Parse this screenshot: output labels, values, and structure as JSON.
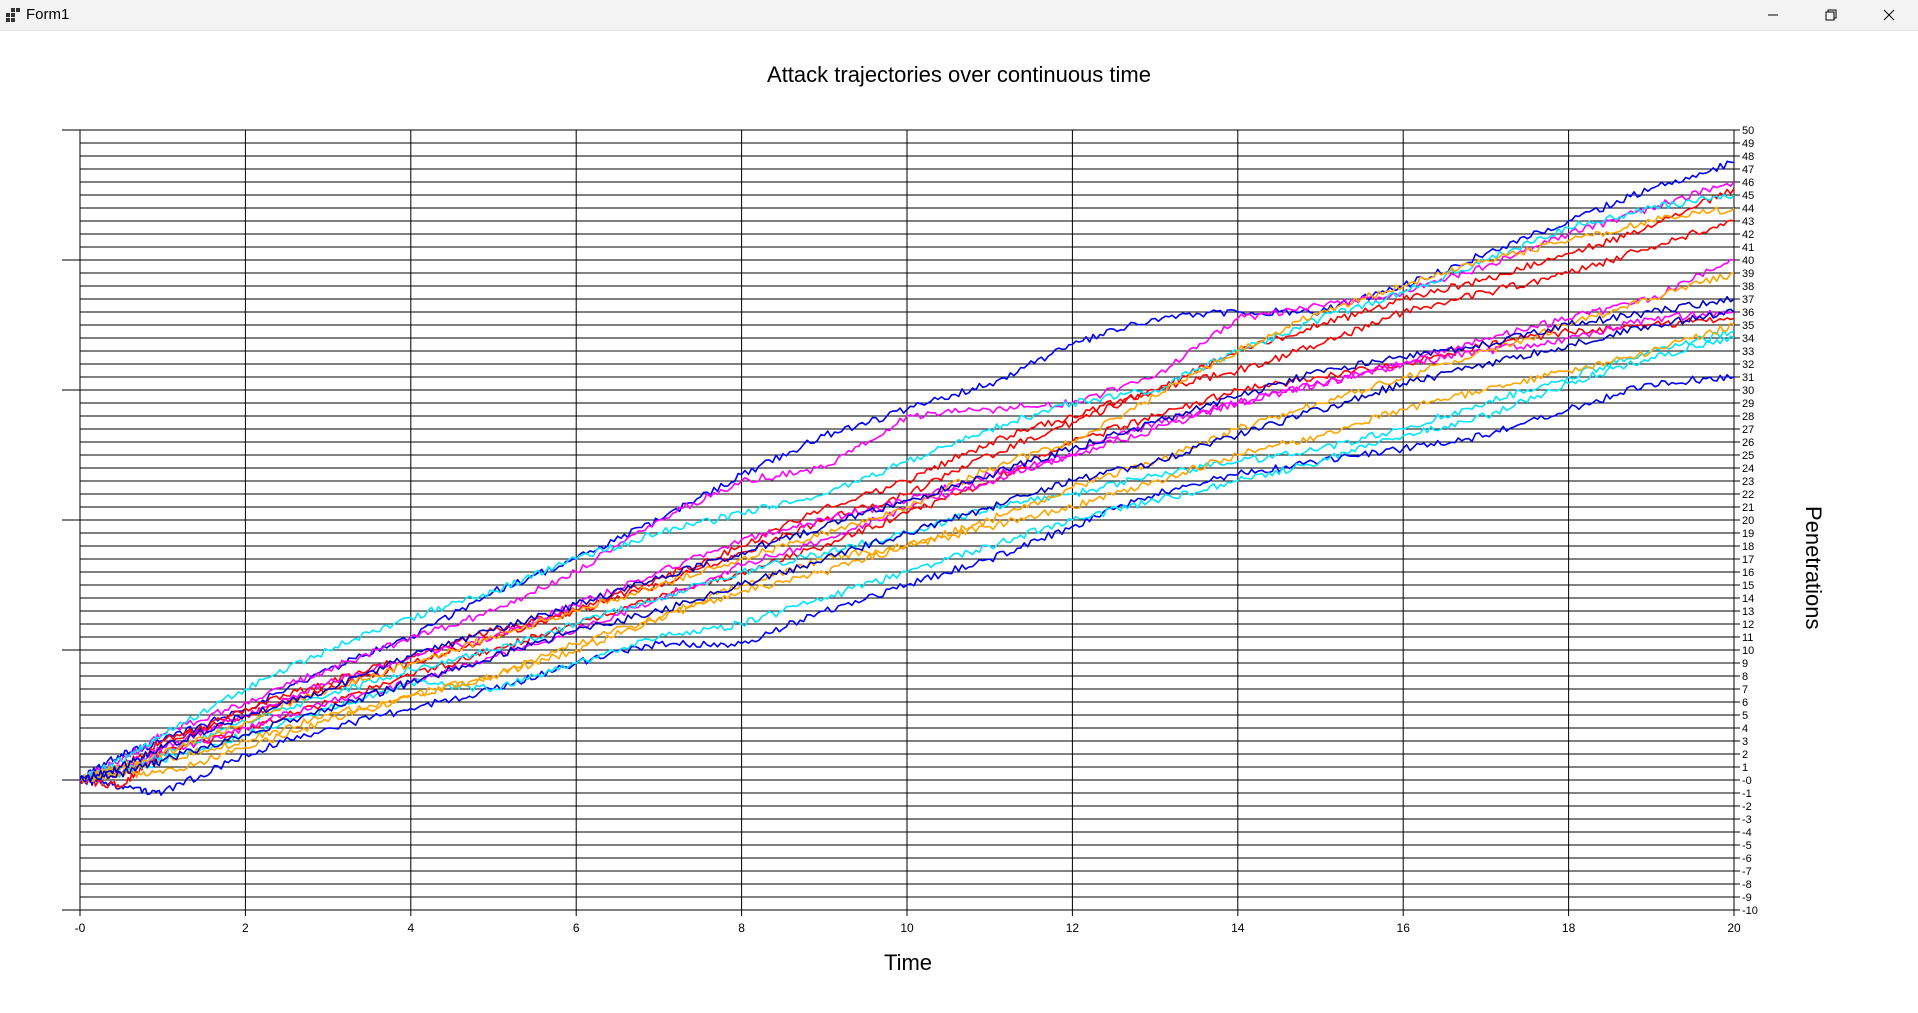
{
  "window": {
    "title": "Form1",
    "icons": {
      "app": "app-icon",
      "minimize": "minimize-icon",
      "maximize": "restore-icon",
      "close": "close-icon"
    }
  },
  "colors": {
    "series": [
      "#0000ff",
      "#ff0000",
      "#ff00ff",
      "#00e5ff",
      "#ffa500",
      "#0000cd"
    ],
    "grid": "#000000",
    "background": "#ffffff"
  },
  "chart_data": {
    "type": "line",
    "title": "Attack trajectories over continuous time",
    "xlabel": "Time",
    "ylabel": "Penetrations",
    "xlim": [
      0,
      20
    ],
    "ylim": [
      -10,
      50
    ],
    "x_ticks": [
      "-0",
      "2",
      "4",
      "6",
      "8",
      "10",
      "12",
      "14",
      "16",
      "18",
      "20"
    ],
    "y_ticks": [
      "50",
      "49",
      "48",
      "47",
      "46",
      "45",
      "44",
      "43",
      "42",
      "41",
      "40",
      "39",
      "38",
      "37",
      "36",
      "35",
      "34",
      "33",
      "32",
      "31",
      "30",
      "29",
      "28",
      "27",
      "26",
      "25",
      "24",
      "23",
      "22",
      "21",
      "20",
      "19",
      "18",
      "17",
      "16",
      "15",
      "14",
      "13",
      "12",
      "11",
      "10",
      "9",
      "8",
      "7",
      "6",
      "5",
      "4",
      "3",
      "2",
      "1",
      "-0",
      "-1",
      "-2",
      "-3",
      "-4",
      "-5",
      "-6",
      "-7",
      "-8",
      "-9",
      "-10"
    ],
    "y_axis_side": "right",
    "grid": true,
    "legend": "none",
    "series": [
      {
        "color": "#0000ff",
        "x": [
          0,
          0.5,
          1,
          2,
          3,
          4,
          5,
          6,
          7,
          8,
          9,
          10,
          11,
          12,
          13,
          14,
          15,
          16,
          17,
          18,
          19,
          20
        ],
        "y": [
          0,
          2,
          3,
          5.5,
          8.5,
          11,
          14.5,
          17,
          20,
          23.5,
          26.5,
          28.5,
          30.5,
          33.5,
          35.5,
          36,
          36,
          38,
          40.5,
          43,
          45.5,
          47.5
        ]
      },
      {
        "color": "#0000ff",
        "x": [
          0,
          0.5,
          1,
          2,
          3,
          4,
          5,
          6,
          7,
          8,
          9,
          10,
          11,
          12,
          13,
          14,
          15,
          16,
          17,
          18,
          19,
          20
        ],
        "y": [
          0,
          -0.5,
          -1,
          2,
          4,
          5.5,
          7,
          9,
          10.5,
          10.5,
          13,
          15,
          17,
          19.5,
          22,
          23.5,
          24.5,
          25.5,
          26.5,
          28.5,
          30.5,
          31
        ]
      },
      {
        "color": "#ff0000",
        "x": [
          0,
          0.5,
          1,
          2,
          3,
          4,
          5,
          6,
          7,
          8,
          9,
          10,
          11,
          12,
          13,
          14,
          15,
          16,
          17,
          18,
          19,
          20
        ],
        "y": [
          0,
          -0.5,
          2.5,
          5.5,
          7.5,
          9.5,
          11.5,
          13,
          15,
          17.5,
          20,
          22,
          25,
          27.5,
          30,
          33,
          35,
          37,
          38.5,
          40.5,
          42.5,
          45.5
        ]
      },
      {
        "color": "#ff0000",
        "x": [
          0,
          0.5,
          1,
          2,
          3,
          4,
          5,
          6,
          7,
          8,
          9,
          10,
          11,
          12,
          13,
          14,
          15,
          16,
          17,
          18,
          19,
          20
        ],
        "y": [
          0,
          1,
          3,
          5,
          7,
          9,
          11,
          13,
          15.5,
          18,
          21,
          23,
          26,
          28,
          30,
          31.5,
          33.5,
          36,
          37.5,
          39,
          41,
          43
        ]
      },
      {
        "color": "#ff0000",
        "x": [
          0,
          0.5,
          1,
          2,
          3,
          4,
          5,
          6,
          7,
          8,
          9,
          10,
          11,
          12,
          13,
          14,
          15,
          16,
          17,
          18,
          19,
          20
        ],
        "y": [
          0,
          0.5,
          2,
          4,
          6,
          8,
          10,
          12,
          14,
          16,
          18,
          20.5,
          23,
          26,
          28,
          30,
          31,
          32,
          33.5,
          34.5,
          35,
          35.5
        ]
      },
      {
        "color": "#ff00ff",
        "x": [
          0,
          0.5,
          1,
          2,
          3,
          4,
          5,
          6,
          7,
          8,
          9,
          10,
          11,
          12,
          13,
          14,
          15,
          16,
          17,
          18,
          19,
          20
        ],
        "y": [
          0,
          1.5,
          3.5,
          6,
          8.5,
          11,
          13,
          16,
          20,
          23,
          24,
          28,
          28.5,
          29,
          31,
          35.5,
          36.5,
          37.5,
          39.5,
          42,
          44,
          46
        ]
      },
      {
        "color": "#ff00ff",
        "x": [
          0,
          0.5,
          1,
          2,
          3,
          4,
          5,
          6,
          7,
          8,
          9,
          10,
          11,
          12,
          13,
          14,
          15,
          16,
          17,
          18,
          19,
          20
        ],
        "y": [
          0,
          1,
          2.5,
          5,
          7.5,
          9.5,
          11,
          13.5,
          16,
          18.5,
          20,
          21.5,
          23.5,
          25,
          27.5,
          29,
          30.5,
          32,
          34,
          35.5,
          37,
          40
        ]
      },
      {
        "color": "#ff00ff",
        "x": [
          0,
          0.5,
          1,
          2,
          3,
          4,
          5,
          6,
          7,
          8,
          9,
          10,
          11,
          12,
          13,
          14,
          15,
          16,
          17,
          18,
          19,
          20
        ],
        "y": [
          0,
          0.5,
          2,
          4,
          6,
          7.5,
          9.5,
          11.5,
          14,
          16.5,
          18.5,
          21,
          23,
          25,
          27,
          29,
          30.5,
          32,
          33,
          34,
          35.5,
          36
        ]
      },
      {
        "color": "#00e5ff",
        "x": [
          0,
          0.5,
          1,
          2,
          3,
          4,
          5,
          6,
          7,
          8,
          9,
          10,
          11,
          12,
          13,
          14,
          15,
          16,
          17,
          18,
          19,
          20
        ],
        "y": [
          0,
          1.5,
          3.5,
          7,
          10,
          12.5,
          14.5,
          17,
          19,
          20.5,
          22,
          24.5,
          27,
          29,
          30,
          33,
          35.5,
          37.5,
          40,
          42.5,
          44,
          45
        ]
      },
      {
        "color": "#00e5ff",
        "x": [
          0,
          0.5,
          1,
          2,
          3,
          4,
          5,
          6,
          7,
          8,
          9,
          10,
          11,
          12,
          13,
          14,
          15,
          16,
          17,
          18,
          19,
          20
        ],
        "y": [
          0,
          0.5,
          1.5,
          3.5,
          5.5,
          7.5,
          7,
          9,
          11,
          12,
          14,
          16,
          18,
          20,
          21.5,
          23,
          24.5,
          26.5,
          28,
          30.5,
          32.5,
          34
        ]
      },
      {
        "color": "#00e5ff",
        "x": [
          0,
          0.5,
          1,
          2,
          3,
          4,
          5,
          6,
          7,
          8,
          9,
          10,
          11,
          12,
          13,
          14,
          15,
          16,
          17,
          18,
          19,
          20
        ],
        "y": [
          0,
          1,
          2,
          4.5,
          6.5,
          8.5,
          10,
          12,
          14,
          16,
          17.5,
          19,
          21,
          22,
          23.5,
          24.5,
          25.5,
          27,
          29,
          31,
          33,
          34.5
        ]
      },
      {
        "color": "#ffa500",
        "x": [
          0,
          0.5,
          1,
          2,
          3,
          4,
          5,
          6,
          7,
          8,
          9,
          10,
          11,
          12,
          13,
          14,
          15,
          16,
          17,
          18,
          19,
          20
        ],
        "y": [
          0,
          1,
          2,
          4.5,
          7,
          9,
          11,
          13,
          15,
          17,
          19,
          21,
          24,
          26,
          29.5,
          33,
          36,
          38,
          40,
          41.5,
          43,
          44
        ]
      },
      {
        "color": "#ffa500",
        "x": [
          0,
          0.5,
          1,
          2,
          3,
          4,
          5,
          6,
          7,
          8,
          9,
          10,
          11,
          12,
          13,
          14,
          15,
          16,
          17,
          18,
          19,
          20
        ],
        "y": [
          0,
          0.5,
          0.5,
          2.5,
          4.5,
          6.5,
          8,
          10.5,
          12.5,
          14.5,
          16,
          18,
          19.5,
          21,
          23,
          25,
          26.5,
          28.5,
          30,
          31.5,
          33,
          35
        ]
      },
      {
        "color": "#ffa500",
        "x": [
          0,
          0.5,
          1,
          2,
          3,
          4,
          5,
          6,
          7,
          8,
          9,
          10,
          11,
          12,
          13,
          14,
          15,
          16,
          17,
          18,
          19,
          20
        ],
        "y": [
          0,
          1,
          1.5,
          3,
          5,
          6.5,
          8,
          10,
          12.5,
          15,
          17,
          18,
          20,
          22.5,
          24.5,
          27,
          29,
          31,
          33,
          35,
          37,
          39
        ]
      },
      {
        "color": "#0000cd",
        "x": [
          0,
          0.5,
          1,
          2,
          3,
          4,
          5,
          6,
          7,
          8,
          9,
          10,
          11,
          12,
          13,
          14,
          15,
          16,
          17,
          18,
          19,
          20
        ],
        "y": [
          0,
          1,
          2.5,
          5,
          7,
          9.5,
          11.5,
          13.5,
          15.5,
          17.5,
          19.5,
          21.5,
          23.5,
          25.5,
          27.5,
          29.5,
          31.5,
          32.5,
          33.5,
          35,
          36,
          37
        ]
      },
      {
        "color": "#0000cd",
        "x": [
          0,
          0.5,
          1,
          2,
          3,
          4,
          5,
          6,
          7,
          8,
          9,
          10,
          11,
          12,
          13,
          14,
          15,
          16,
          17,
          18,
          19,
          20
        ],
        "y": [
          0,
          0.5,
          1.5,
          3.5,
          5.5,
          7.5,
          9.5,
          11.5,
          13,
          15,
          17,
          19,
          21,
          23,
          24.5,
          26.5,
          28.5,
          30.5,
          32,
          33.5,
          35,
          36
        ]
      }
    ]
  }
}
